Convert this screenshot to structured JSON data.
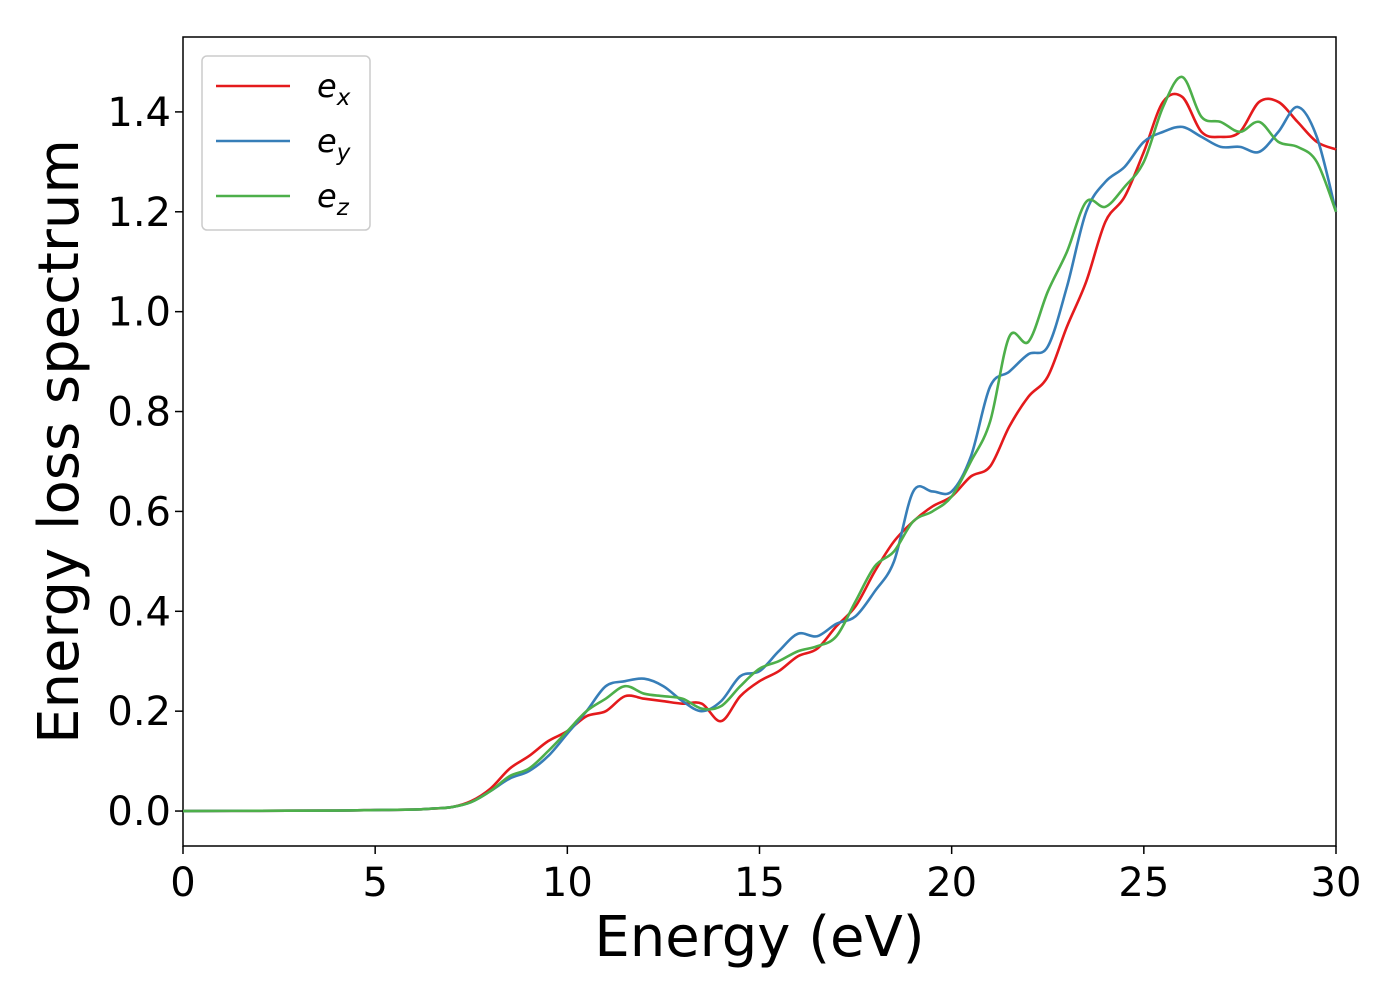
{
  "chart_data": {
    "type": "line",
    "title": "",
    "xlabel": "Energy (eV)",
    "ylabel": "Energy loss spectrum",
    "xlim": [
      0,
      30
    ],
    "ylim": [
      -0.07,
      1.55
    ],
    "xticks": [
      0,
      5,
      10,
      15,
      20,
      25,
      30
    ],
    "yticks": [
      0.0,
      0.2,
      0.4,
      0.6,
      0.8,
      1.0,
      1.2,
      1.4
    ],
    "xtick_labels": [
      "0",
      "5",
      "10",
      "15",
      "20",
      "25",
      "30"
    ],
    "ytick_labels": [
      "0.0",
      "0.2",
      "0.4",
      "0.6",
      "0.8",
      "1.0",
      "1.2",
      "1.4"
    ],
    "grid": false,
    "legend_position": "top-left",
    "series": [
      {
        "name": "e_x",
        "legend_base": "e",
        "legend_sub": "x",
        "color": "#e41a1c",
        "x": [
          0,
          2,
          4,
          5,
          6,
          6.5,
          7,
          7.5,
          8,
          8.5,
          9,
          9.5,
          10,
          10.5,
          11,
          11.5,
          12,
          12.5,
          13,
          13.5,
          14,
          14.5,
          15,
          15.5,
          16,
          16.5,
          17,
          17.5,
          18,
          18.5,
          19,
          19.5,
          20,
          20.5,
          21,
          21.5,
          22,
          22.5,
          23,
          23.5,
          24,
          24.5,
          25,
          25.5,
          26,
          26.5,
          27,
          27.5,
          28,
          28.5,
          29,
          29.5,
          30
        ],
        "y": [
          0.0,
          0.0005,
          0.001,
          0.002,
          0.003,
          0.005,
          0.008,
          0.02,
          0.045,
          0.085,
          0.11,
          0.14,
          0.16,
          0.19,
          0.2,
          0.23,
          0.225,
          0.22,
          0.215,
          0.215,
          0.18,
          0.23,
          0.26,
          0.28,
          0.31,
          0.325,
          0.37,
          0.41,
          0.48,
          0.54,
          0.58,
          0.61,
          0.63,
          0.67,
          0.69,
          0.77,
          0.83,
          0.87,
          0.97,
          1.06,
          1.18,
          1.23,
          1.32,
          1.42,
          1.43,
          1.36,
          1.35,
          1.36,
          1.42,
          1.42,
          1.38,
          1.34,
          1.325
        ]
      },
      {
        "name": "e_y",
        "legend_base": "e",
        "legend_sub": "y",
        "color": "#377eb8",
        "x": [
          0,
          2,
          4,
          5,
          6,
          6.5,
          7,
          7.5,
          8,
          8.5,
          9,
          9.5,
          10,
          10.5,
          11,
          11.5,
          12,
          12.5,
          13,
          13.5,
          14,
          14.5,
          15,
          15.5,
          16,
          16.5,
          17,
          17.5,
          18,
          18.5,
          19,
          19.5,
          20,
          20.5,
          21,
          21.5,
          22,
          22.5,
          23,
          23.5,
          24,
          24.5,
          25,
          25.5,
          26,
          26.5,
          27,
          27.5,
          28,
          28.5,
          29,
          29.5,
          30
        ],
        "y": [
          0.0,
          0.0005,
          0.001,
          0.002,
          0.003,
          0.005,
          0.008,
          0.018,
          0.04,
          0.065,
          0.08,
          0.11,
          0.155,
          0.2,
          0.25,
          0.26,
          0.265,
          0.25,
          0.22,
          0.2,
          0.22,
          0.27,
          0.28,
          0.32,
          0.355,
          0.35,
          0.375,
          0.39,
          0.44,
          0.5,
          0.64,
          0.64,
          0.64,
          0.71,
          0.85,
          0.88,
          0.915,
          0.93,
          1.05,
          1.2,
          1.26,
          1.29,
          1.34,
          1.36,
          1.37,
          1.35,
          1.33,
          1.33,
          1.32,
          1.36,
          1.41,
          1.35,
          1.2
        ]
      },
      {
        "name": "e_z",
        "legend_base": "e",
        "legend_sub": "z",
        "color": "#4daf4a",
        "x": [
          0,
          2,
          4,
          5,
          6,
          6.5,
          7,
          7.5,
          8,
          8.5,
          9,
          9.5,
          10,
          10.5,
          11,
          11.5,
          12,
          12.5,
          13,
          13.5,
          14,
          14.5,
          15,
          15.5,
          16,
          16.5,
          17,
          17.5,
          18,
          18.5,
          19,
          19.5,
          20,
          20.5,
          21,
          21.5,
          22,
          22.5,
          23,
          23.5,
          24,
          24.5,
          25,
          25.5,
          26,
          26.5,
          27,
          27.5,
          28,
          28.5,
          29,
          29.5,
          30
        ],
        "y": [
          0.0,
          0.0005,
          0.001,
          0.002,
          0.003,
          0.005,
          0.008,
          0.018,
          0.04,
          0.07,
          0.085,
          0.12,
          0.16,
          0.2,
          0.225,
          0.25,
          0.235,
          0.23,
          0.225,
          0.205,
          0.21,
          0.25,
          0.285,
          0.3,
          0.32,
          0.33,
          0.35,
          0.42,
          0.49,
          0.52,
          0.58,
          0.6,
          0.63,
          0.7,
          0.78,
          0.95,
          0.94,
          1.04,
          1.12,
          1.22,
          1.21,
          1.25,
          1.3,
          1.41,
          1.47,
          1.39,
          1.38,
          1.36,
          1.38,
          1.34,
          1.33,
          1.3,
          1.2
        ]
      }
    ]
  }
}
